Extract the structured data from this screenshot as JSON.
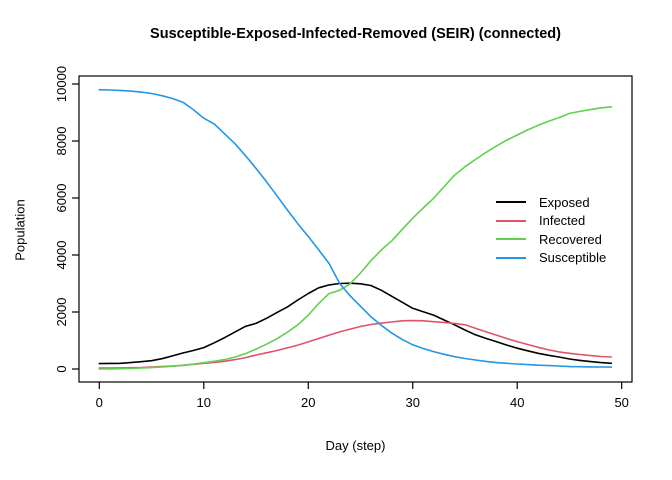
{
  "figure": {
    "title": "Susceptible-Exposed-Infected-Removed (SEIR) (connected)",
    "xlabel": "Day (step)",
    "ylabel": "Population"
  },
  "legend": {
    "position": "right-middle",
    "has_box": false,
    "entries": [
      {
        "label": "Exposed",
        "color": "#000000"
      },
      {
        "label": "Infected",
        "color": "#DF536B"
      },
      {
        "label": "Recovered",
        "color": "#61D04F"
      },
      {
        "label": "Susceptible",
        "color": "#2297E6"
      }
    ]
  },
  "chart_data": {
    "type": "line",
    "title": "Susceptible-Exposed-Infected-Removed (SEIR) (connected)",
    "xlabel": "Day (step)",
    "ylabel": "Population",
    "xlim": [
      0,
      50
    ],
    "ylim": [
      0,
      10000
    ],
    "xticks": [
      0,
      10,
      20,
      30,
      40,
      50
    ],
    "yticks": [
      0,
      2000,
      4000,
      6000,
      8000,
      10000
    ],
    "grid": false,
    "legend_position": "right-middle",
    "x": [
      0,
      1,
      2,
      3,
      4,
      5,
      6,
      7,
      8,
      9,
      10,
      11,
      12,
      13,
      14,
      15,
      16,
      17,
      18,
      19,
      20,
      21,
      22,
      23,
      24,
      25,
      26,
      27,
      28,
      29,
      30,
      31,
      32,
      33,
      34,
      35,
      36,
      37,
      38,
      39,
      40,
      41,
      42,
      43,
      44,
      45,
      46,
      47,
      48,
      49
    ],
    "series": [
      {
        "name": "Exposed",
        "color": "#000000",
        "values": [
          190,
          195,
          200,
          225,
          255,
          290,
          360,
          460,
          560,
          650,
          750,
          920,
          1100,
          1300,
          1500,
          1600,
          1780,
          1980,
          2180,
          2420,
          2650,
          2850,
          2950,
          3000,
          3010,
          2990,
          2930,
          2760,
          2550,
          2340,
          2130,
          2010,
          1890,
          1720,
          1550,
          1370,
          1200,
          1075,
          960,
          840,
          730,
          640,
          550,
          480,
          420,
          350,
          300,
          260,
          225,
          200
        ]
      },
      {
        "name": "Infected",
        "color": "#DF536B",
        "values": [
          30,
          35,
          40,
          45,
          50,
          65,
          85,
          105,
          130,
          165,
          200,
          230,
          270,
          330,
          400,
          490,
          570,
          650,
          740,
          840,
          950,
          1070,
          1190,
          1300,
          1400,
          1490,
          1560,
          1610,
          1650,
          1690,
          1700,
          1690,
          1660,
          1630,
          1600,
          1550,
          1430,
          1310,
          1190,
          1070,
          960,
          860,
          760,
          670,
          600,
          550,
          510,
          470,
          440,
          420
        ]
      },
      {
        "name": "Recovered",
        "color": "#61D04F",
        "values": [
          0,
          5,
          10,
          20,
          35,
          50,
          70,
          95,
          130,
          170,
          220,
          270,
          330,
          420,
          540,
          700,
          870,
          1060,
          1290,
          1550,
          1890,
          2300,
          2650,
          2760,
          2990,
          3370,
          3800,
          4180,
          4500,
          4900,
          5290,
          5650,
          5990,
          6400,
          6800,
          7100,
          7350,
          7600,
          7820,
          8030,
          8210,
          8390,
          8550,
          8690,
          8820,
          8970,
          9040,
          9100,
          9160,
          9200
        ]
      },
      {
        "name": "Susceptible",
        "color": "#2297E6",
        "values": [
          9800,
          9790,
          9775,
          9750,
          9715,
          9665,
          9590,
          9490,
          9360,
          9100,
          8800,
          8600,
          8250,
          7900,
          7480,
          7040,
          6570,
          6080,
          5580,
          5100,
          4650,
          4180,
          3700,
          3000,
          2570,
          2200,
          1835,
          1530,
          1260,
          1040,
          850,
          720,
          610,
          515,
          430,
          370,
          315,
          265,
          225,
          200,
          175,
          155,
          135,
          120,
          105,
          85,
          80,
          75,
          70,
          65
        ]
      }
    ]
  }
}
